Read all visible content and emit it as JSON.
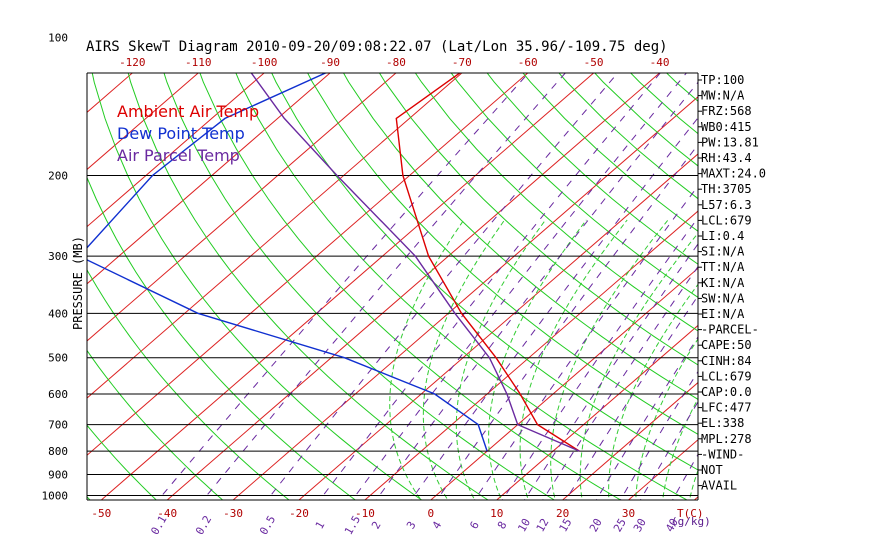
{
  "chart_data": {
    "type": "line",
    "title": "AIRS SkewT Diagram 2010-09-20/09:08:22.07 (Lat/Lon 35.96/-109.75 deg)",
    "ylabel": "PRESSURE (MB)",
    "xunit": "T(C)",
    "mixing_unit": "(g/kg)",
    "y_ticks": [
      "100",
      "200",
      "300",
      "400",
      "500",
      "600",
      "700",
      "800",
      "900",
      "1000"
    ],
    "top_ticks": [
      "-120",
      "-110",
      "-100",
      "-90",
      "-80",
      "-70",
      "-60",
      "-50",
      "-40"
    ],
    "bottom_ticks": [
      "-50",
      "-40",
      "-30",
      "-20",
      "-10",
      "0",
      "10",
      "20",
      "30"
    ],
    "mixing_ratios": [
      "0.1",
      "0.2",
      "0.5",
      "1",
      "1.5",
      "2",
      "3",
      "4",
      "6",
      "8",
      "10",
      "12",
      "15",
      "20",
      "25",
      "30",
      "40"
    ],
    "legend": [
      {
        "name": "Ambient Air Temp",
        "color": "#dd0000"
      },
      {
        "name": "Dew Point Temp",
        "color": "#1030d0"
      },
      {
        "name": "Air Parcel Temp",
        "color": "#6a2aa0"
      }
    ],
    "series": [
      {
        "name": "Ambient Air Temp",
        "color": "#dd0000",
        "points": [
          [
            100,
            -69
          ],
          [
            150,
            -72
          ],
          [
            200,
            -61
          ],
          [
            300,
            -43
          ],
          [
            400,
            -28
          ],
          [
            500,
            -15
          ],
          [
            600,
            -5
          ],
          [
            700,
            3
          ],
          [
            800,
            14
          ]
        ]
      },
      {
        "name": "Dew Point Temp",
        "color": "#1030d0",
        "points": [
          [
            100,
            -85
          ],
          [
            150,
            -98
          ],
          [
            200,
            -99
          ],
          [
            300,
            -96
          ],
          [
            400,
            -68
          ],
          [
            500,
            -38
          ],
          [
            600,
            -18
          ],
          [
            700,
            -6
          ],
          [
            800,
            0
          ]
        ]
      },
      {
        "name": "Air Parcel Temp",
        "color": "#6a2aa0",
        "points": [
          [
            100,
            -112
          ],
          [
            150,
            -89
          ],
          [
            200,
            -71
          ],
          [
            300,
            -45
          ],
          [
            400,
            -29
          ],
          [
            500,
            -16
          ],
          [
            600,
            -7
          ],
          [
            700,
            0
          ],
          [
            800,
            14
          ]
        ]
      }
    ]
  },
  "indices": [
    "TP:100",
    "MW:N/A",
    "FRZ:568",
    "WB0:415",
    "PW:13.81",
    "RH:43.4",
    "MAXT:24.0",
    "TH:3705",
    "L57:6.3",
    "LCL:679",
    "LI:0.4",
    "SI:N/A",
    "TT:N/A",
    "KI:N/A",
    "SW:N/A",
    "EI:N/A",
    "-PARCEL-",
    "CAPE:50",
    "CINH:84",
    "LCL:679",
    "CAP:0.0",
    "LFC:477",
    "EL:338",
    "MPL:278",
    "-WIND-",
    "NOT",
    "AVAIL"
  ]
}
